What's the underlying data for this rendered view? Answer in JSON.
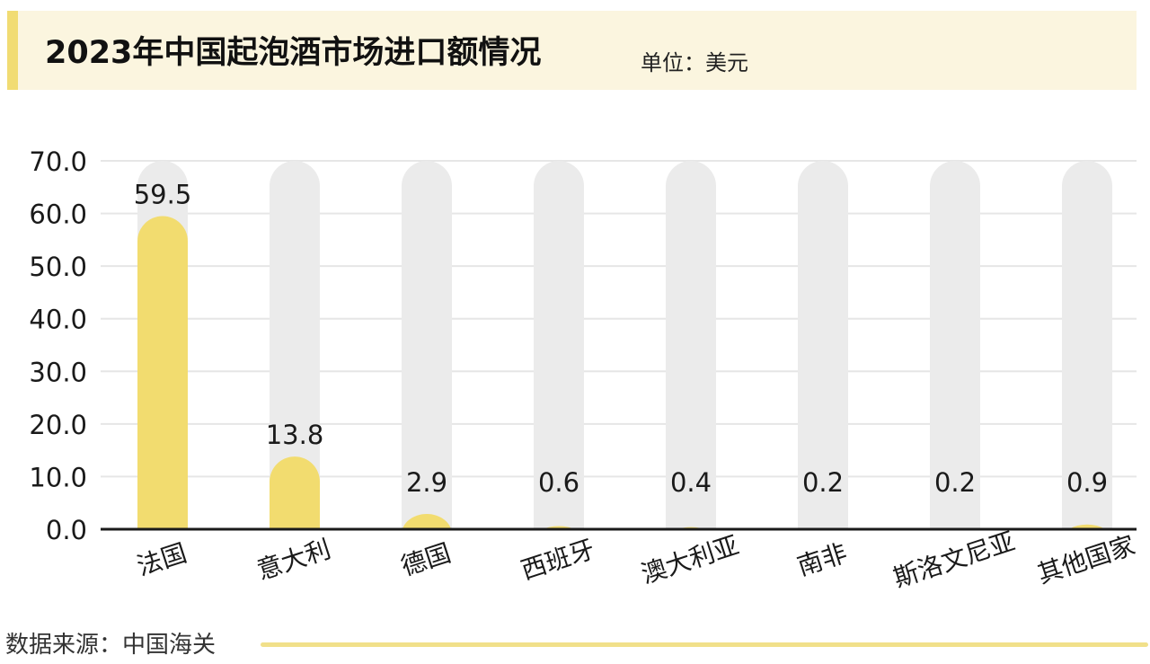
{
  "header": {
    "title": "2023年中国起泡酒市场进口额情况",
    "unit": "单位：美元"
  },
  "chart_data": {
    "type": "bar",
    "title": "2023年中国起泡酒市场进口额情况",
    "unit": "单位：美元",
    "categories": [
      "法国",
      "意大利",
      "德国",
      "西班牙",
      "澳大利亚",
      "南非",
      "斯洛文尼亚",
      "其他国家"
    ],
    "values": [
      59.5,
      13.8,
      2.9,
      0.6,
      0.4,
      0.2,
      0.2,
      0.9
    ],
    "value_labels": [
      "59.5",
      "13.8",
      "2.9",
      "0.6",
      "0.4",
      "0.2",
      "0.2",
      "0.9"
    ],
    "ylim": [
      0,
      70
    ],
    "yticks": [
      "0.0",
      "10.0",
      "20.0",
      "30.0",
      "40.0",
      "50.0",
      "60.0",
      "70.0"
    ],
    "grid": true,
    "colors": {
      "bar": "#f2dc6f",
      "track": "#ebebeb",
      "grid": "#e6e6e6",
      "axis": "#1a1a1a"
    }
  },
  "footer": {
    "source": "数据来源：中国海关"
  }
}
